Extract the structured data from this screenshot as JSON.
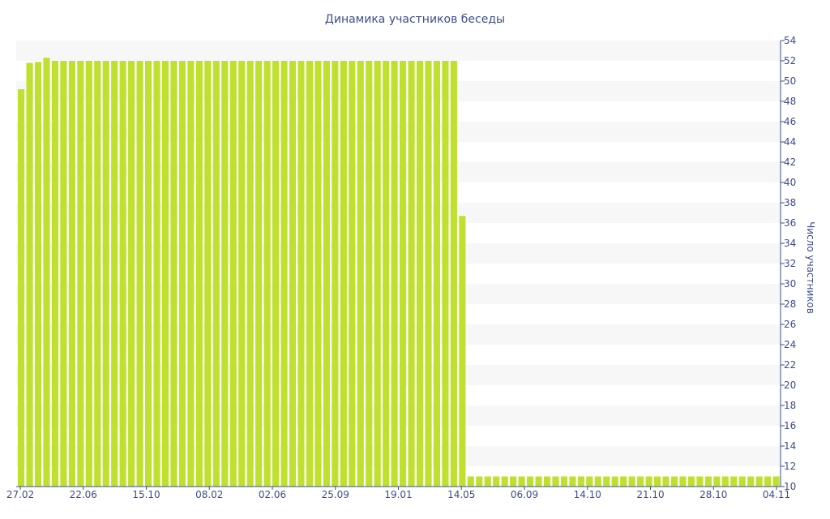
{
  "chart_data": {
    "type": "bar",
    "title": "Динамика участников беседы",
    "ylabel": "Число участников",
    "xlabel": "",
    "ylim": [
      10,
      54
    ],
    "y_ticks": [
      10,
      12,
      14,
      16,
      18,
      20,
      22,
      24,
      26,
      28,
      30,
      32,
      34,
      36,
      38,
      40,
      42,
      44,
      46,
      48,
      50,
      52,
      54
    ],
    "y_axis_side": "right",
    "x_tick_labels": [
      "27.02",
      "22.06",
      "15.10",
      "08.02",
      "02.06",
      "25.09",
      "19.01",
      "14.05",
      "06.09",
      "14.10",
      "21.10",
      "28.10",
      "04.11"
    ],
    "grid": "alternating horizontal bands",
    "bar_color": "#c0e030",
    "band_color": "#f7f7f7",
    "text_color": "#3d4d8c",
    "values": [
      49.2,
      51.8,
      51.9,
      52.3,
      52,
      52,
      52,
      52,
      52,
      52,
      52,
      52,
      52,
      52,
      52,
      52,
      52,
      52,
      52,
      52,
      52,
      52,
      52,
      52,
      52,
      52,
      52,
      52,
      52,
      52,
      52,
      52,
      52,
      52,
      52,
      52,
      52,
      52,
      52,
      52,
      52,
      52,
      52,
      52,
      52,
      52,
      52,
      52,
      52,
      52,
      52,
      52,
      36.7,
      11,
      11,
      11,
      11,
      11,
      11,
      11,
      11,
      11,
      11,
      11,
      11,
      11,
      11,
      11,
      11,
      11,
      11,
      11,
      11,
      11,
      11,
      11,
      11,
      11,
      11,
      11,
      11,
      11,
      11,
      11,
      11,
      11,
      11,
      11,
      11,
      11
    ]
  }
}
